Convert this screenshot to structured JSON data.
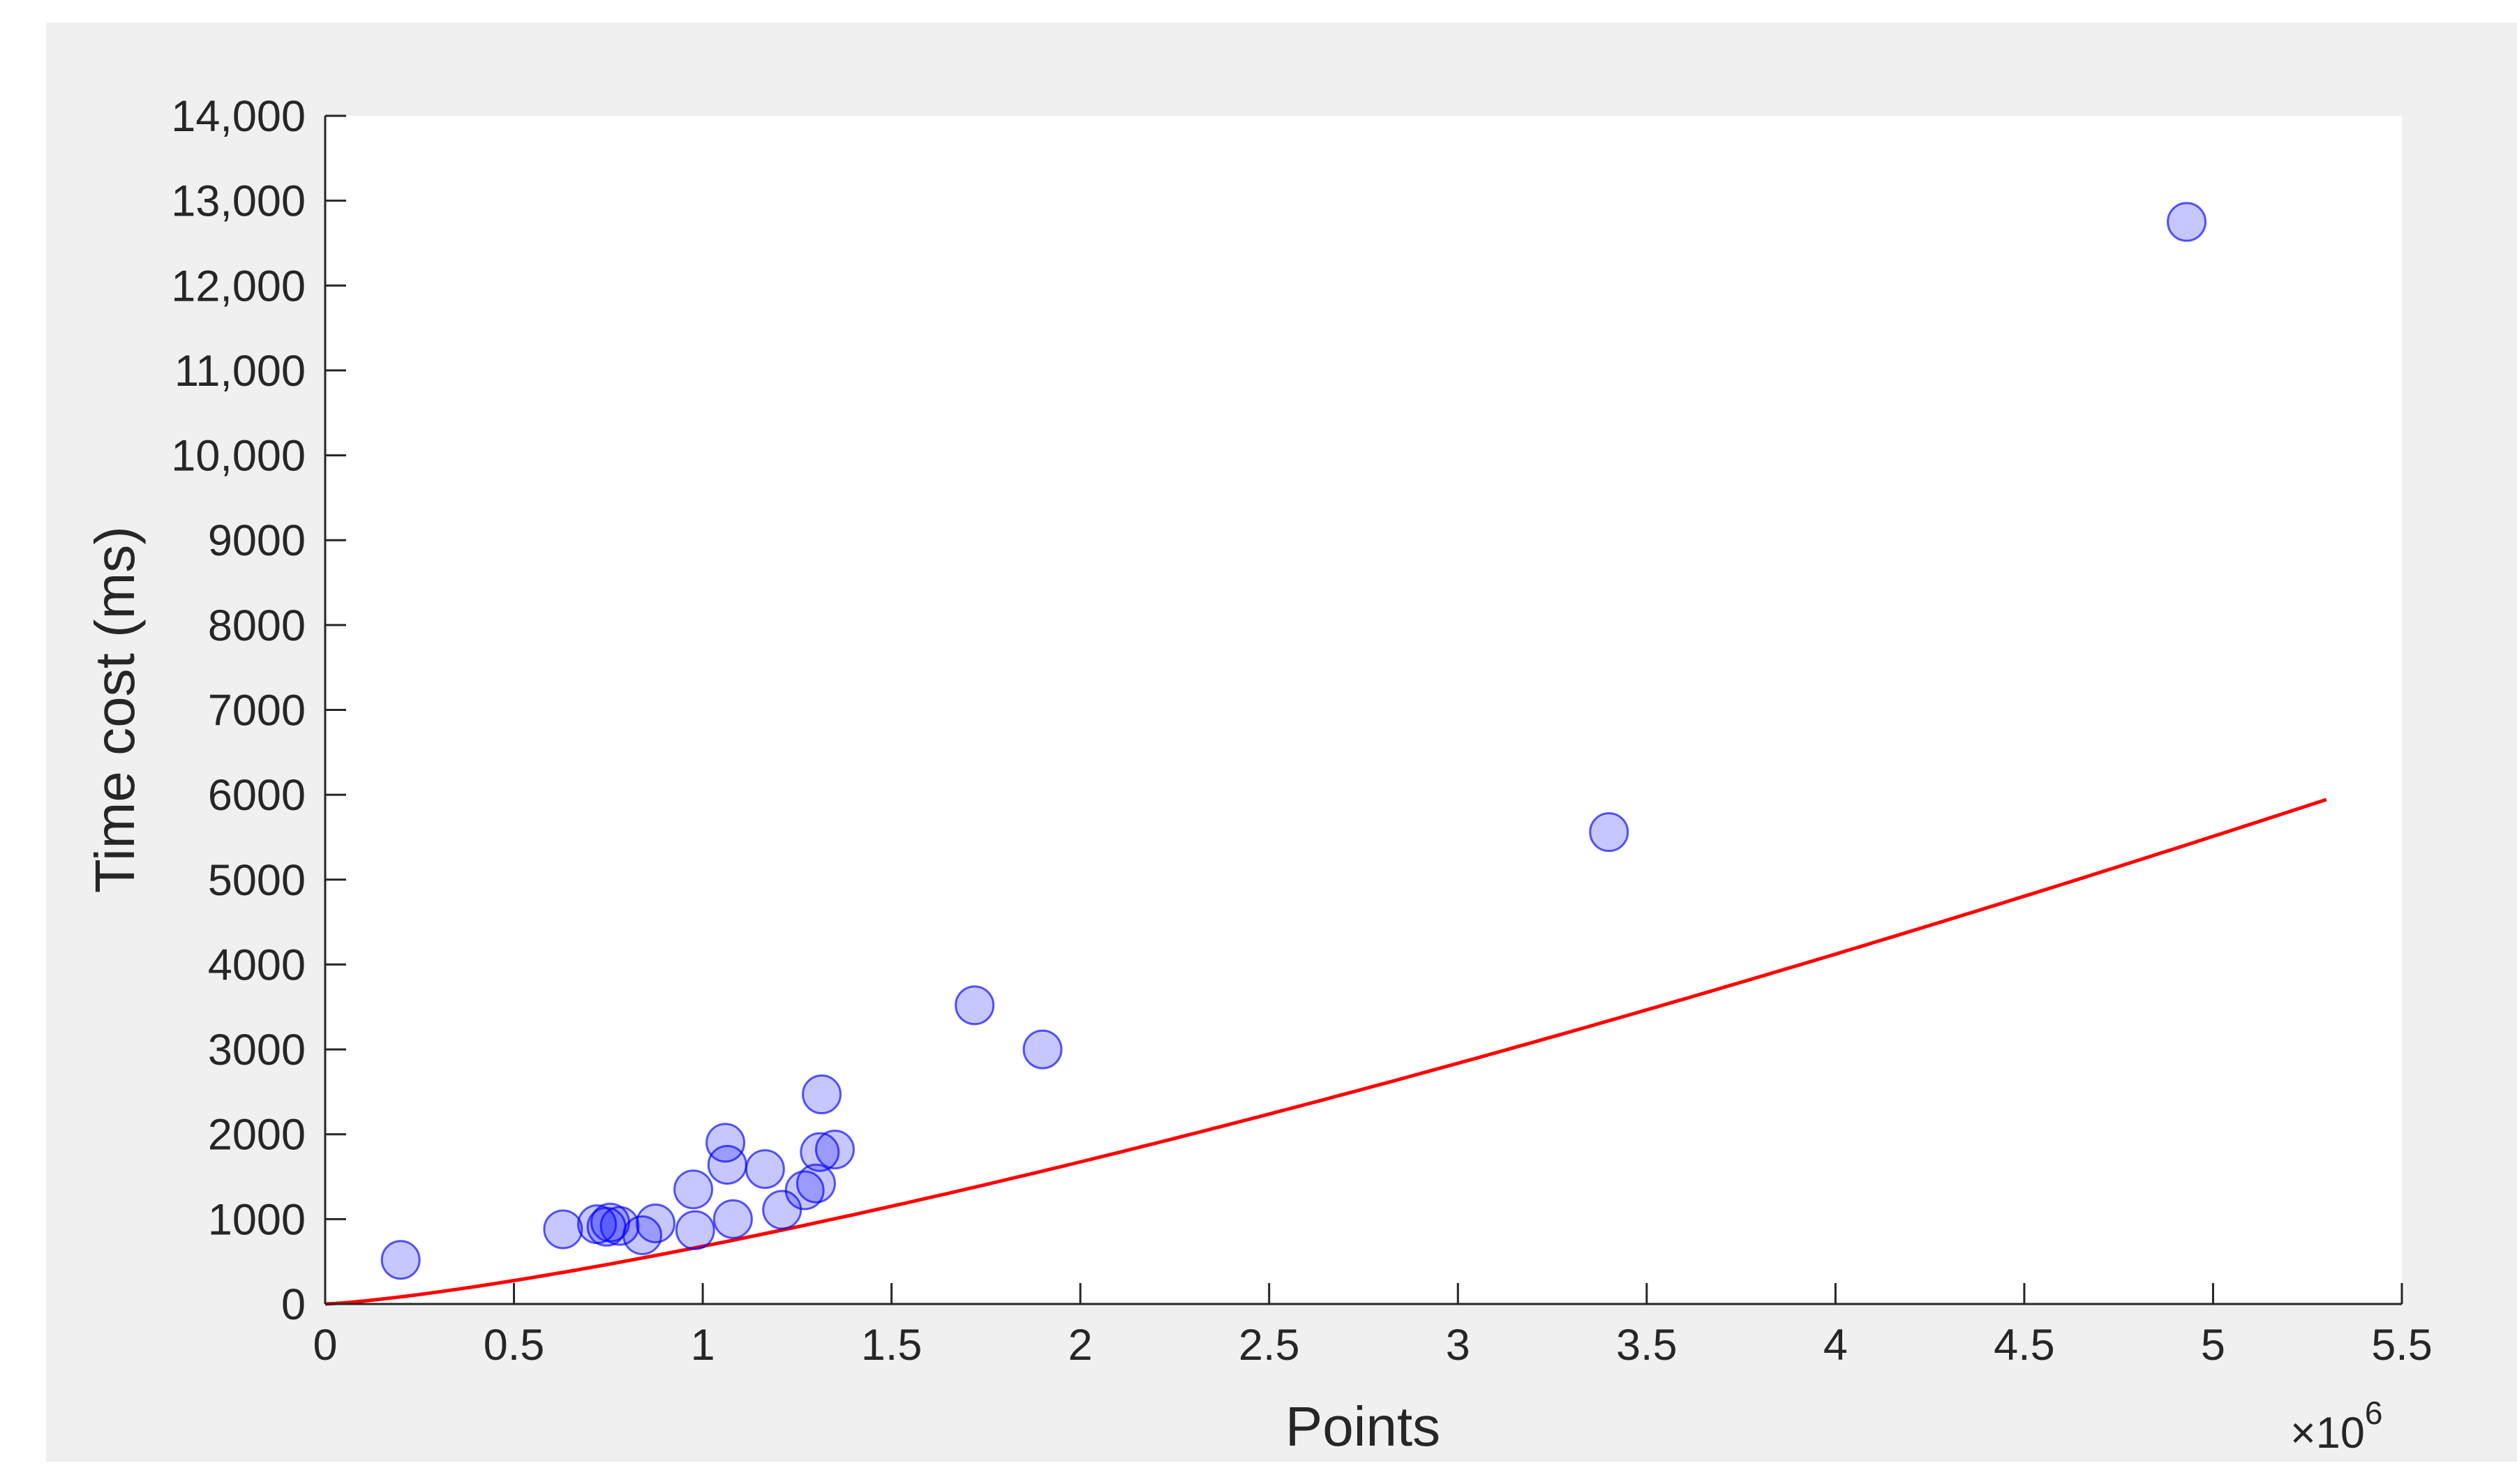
{
  "chart_data": {
    "type": "scatter",
    "title": "",
    "xlabel": "Points",
    "ylabel": "Time cost (ms)",
    "x_exponent": {
      "base": "×10",
      "power": "6"
    },
    "xlim": [
      0,
      5.5
    ],
    "ylim": [
      0,
      14000
    ],
    "grid": false,
    "legend": "none",
    "x_ticks": [
      0,
      0.5,
      1,
      1.5,
      2,
      2.5,
      3,
      3.5,
      4,
      4.5,
      5,
      5.5
    ],
    "x_tick_labels": [
      "0",
      "0.5",
      "1",
      "1.5",
      "2",
      "2.5",
      "3",
      "3.5",
      "4",
      "4.5",
      "5",
      "5.5"
    ],
    "y_ticks": [
      0,
      1000,
      2000,
      3000,
      4000,
      5000,
      6000,
      7000,
      8000,
      9000,
      10000,
      11000,
      12000,
      13000,
      14000
    ],
    "y_tick_labels": [
      "0",
      "1000",
      "2000",
      "3000",
      "4000",
      "5000",
      "6000",
      "7000",
      "8000",
      "9000",
      "10,000",
      "11,000",
      "12,000",
      "13,000",
      "14,000"
    ],
    "colors": {
      "marker_fill": "#0000ff",
      "marker_edge": "#0000ff",
      "fit_line": "#ff0000",
      "figure_bg": "#f0f0f0",
      "axes_bg": "#ffffff",
      "axis": "#262626"
    },
    "series": [
      {
        "type": "scatter",
        "points": [
          [
            0.2,
            520
          ],
          [
            0.63,
            880
          ],
          [
            0.72,
            940
          ],
          [
            0.745,
            910
          ],
          [
            0.755,
            960
          ],
          [
            0.78,
            920
          ],
          [
            0.84,
            810
          ],
          [
            0.875,
            950
          ],
          [
            0.975,
            1350
          ],
          [
            0.98,
            870
          ],
          [
            1.06,
            1900
          ],
          [
            1.065,
            1640
          ],
          [
            1.08,
            1000
          ],
          [
            1.165,
            1590
          ],
          [
            1.21,
            1110
          ],
          [
            1.27,
            1340
          ],
          [
            1.3,
            1420
          ],
          [
            1.31,
            1790
          ],
          [
            1.315,
            2470
          ],
          [
            1.35,
            1820
          ],
          [
            1.72,
            3520
          ],
          [
            1.9,
            3000
          ],
          [
            3.4,
            5560
          ],
          [
            4.93,
            12750
          ]
        ]
      },
      {
        "type": "line",
        "fit": {
          "a": 680,
          "b": 1.3,
          "x_min": 0,
          "x_max": 5.3
        }
      }
    ]
  }
}
